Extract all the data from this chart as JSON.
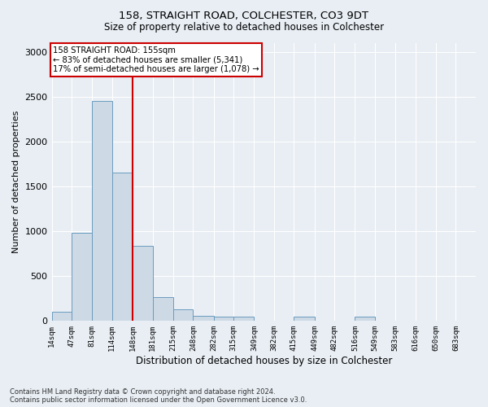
{
  "title_line1": "158, STRAIGHT ROAD, COLCHESTER, CO3 9DT",
  "title_line2": "Size of property relative to detached houses in Colchester",
  "xlabel": "Distribution of detached houses by size in Colchester",
  "ylabel": "Number of detached properties",
  "footnote1": "Contains HM Land Registry data © Crown copyright and database right 2024.",
  "footnote2": "Contains public sector information licensed under the Open Government Licence v3.0.",
  "annotation_line1": "158 STRAIGHT ROAD: 155sqm",
  "annotation_line2": "← 83% of detached houses are smaller (5,341)",
  "annotation_line3": "17% of semi-detached houses are larger (1,078) →",
  "bar_color": "#cdd9e5",
  "bar_edge_color": "#6a9cbf",
  "vline_color": "#cc0000",
  "vline_x": 148,
  "categories": [
    "14sqm",
    "47sqm",
    "81sqm",
    "114sqm",
    "148sqm",
    "181sqm",
    "215sqm",
    "248sqm",
    "282sqm",
    "315sqm",
    "349sqm",
    "382sqm",
    "415sqm",
    "449sqm",
    "482sqm",
    "516sqm",
    "549sqm",
    "583sqm",
    "616sqm",
    "650sqm",
    "683sqm"
  ],
  "bin_edges": [
    14,
    47,
    81,
    114,
    148,
    181,
    215,
    248,
    282,
    315,
    349,
    382,
    415,
    449,
    482,
    516,
    549,
    583,
    616,
    650,
    683,
    716
  ],
  "values": [
    100,
    980,
    2450,
    1650,
    840,
    270,
    130,
    60,
    50,
    50,
    0,
    0,
    50,
    0,
    0,
    50,
    0,
    0,
    0,
    0,
    0
  ],
  "ylim": [
    0,
    3100
  ],
  "yticks": [
    0,
    500,
    1000,
    1500,
    2000,
    2500,
    3000
  ],
  "background_color": "#e8eef4",
  "plot_bg_color": "#e8eef4",
  "grid_color": "#ffffff",
  "annotation_box_color": "#ffffff",
  "annotation_box_edge": "#cc0000"
}
